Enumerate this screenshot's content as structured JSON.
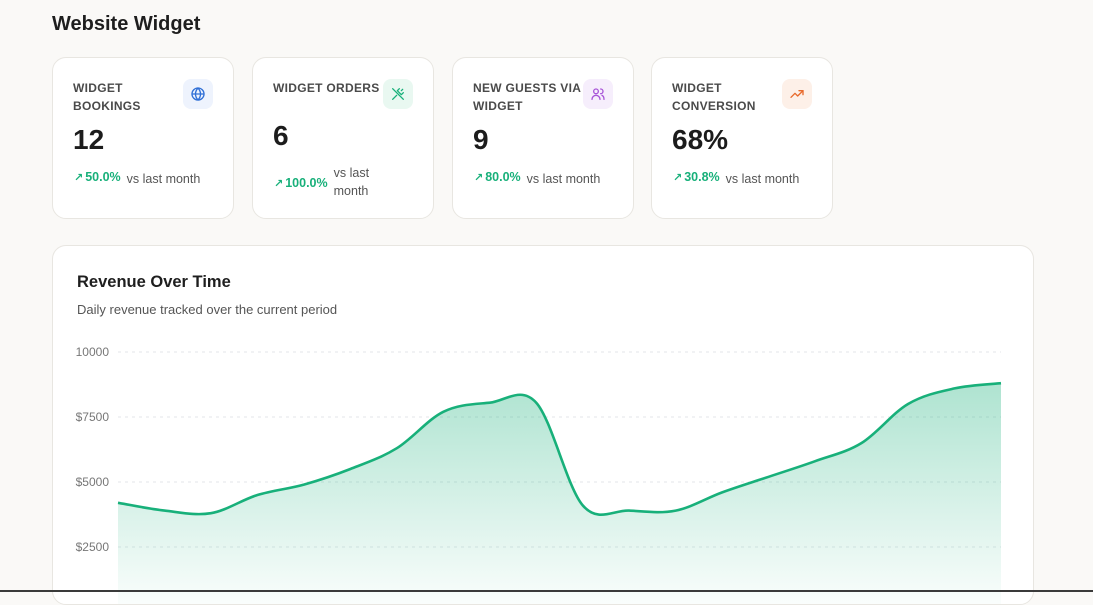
{
  "page": {
    "title": "Website Widget"
  },
  "cards": [
    {
      "label": "WIDGET BOOKINGS",
      "icon": "globe-icon",
      "icon_color": "#2f6fd6",
      "icon_bg": "#eef3fd",
      "value": "12",
      "delta": "50.0%",
      "delta_text": "vs last month"
    },
    {
      "label": "WIDGET ORDERS",
      "icon": "utensils-icon",
      "icon_color": "#18b07a",
      "icon_bg": "#e9f8f1",
      "value": "6",
      "delta": "100.0%",
      "delta_text": "vs last month"
    },
    {
      "label": "NEW GUESTS VIA WIDGET",
      "icon": "users-icon",
      "icon_color": "#a855d8",
      "icon_bg": "#f6eefc",
      "value": "9",
      "delta": "80.0%",
      "delta_text": "vs last month"
    },
    {
      "label": "WIDGET CONVERSION",
      "icon": "trending-up-icon",
      "icon_color": "#e8692b",
      "icon_bg": "#fdf0e8",
      "value": "68%",
      "delta": "30.8%",
      "delta_text": "vs last month"
    }
  ],
  "chart": {
    "title": "Revenue Over Time",
    "subtitle": "Daily revenue tracked over the current period"
  },
  "chart_data": {
    "type": "area",
    "title": "Revenue Over Time",
    "subtitle": "Daily revenue tracked over the current period",
    "y_tick_labels": [
      "10000",
      "$7500",
      "$5000",
      "$2500"
    ],
    "y_ticks": [
      10000,
      7500,
      5000,
      2500
    ],
    "series": [
      {
        "values": [
          4200,
          3900,
          3800,
          4500,
          4900,
          5500,
          6300,
          7700,
          8050,
          8050,
          4100,
          3900,
          3900,
          4600,
          5200,
          5800,
          6500,
          8000,
          8600,
          8800
        ]
      }
    ],
    "ylim_top": 10000,
    "grid": true,
    "color": "#18b07a"
  }
}
